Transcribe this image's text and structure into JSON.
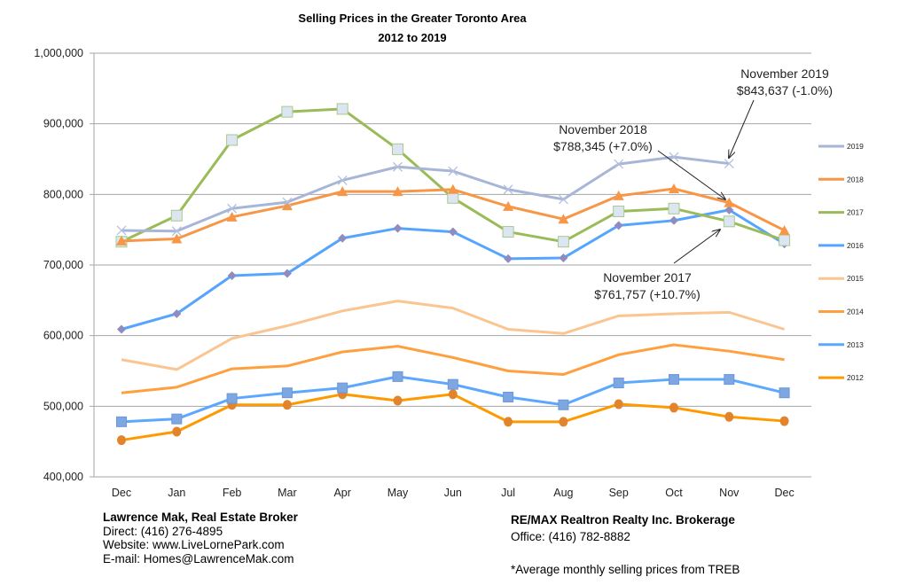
{
  "chart_data": {
    "type": "line",
    "title": "Selling Prices in the Greater Toronto Area",
    "subtitle": "2012 to 2019",
    "xlabel": "",
    "ylabel": "",
    "ylim": [
      400000,
      1000000
    ],
    "yticks": [
      400000,
      500000,
      600000,
      700000,
      800000,
      900000,
      1000000
    ],
    "ytick_labels": [
      "400,000",
      "500,000",
      "600,000",
      "700,000",
      "800,000",
      "900,000",
      "1,000,000"
    ],
    "grid": true,
    "legend_position": "right",
    "categories": [
      "Dec",
      "Jan",
      "Feb",
      "Mar",
      "Apr",
      "May",
      "Jun",
      "Jul",
      "Aug",
      "Sep",
      "Oct",
      "Nov",
      "Dec"
    ],
    "series": [
      {
        "name": "2019",
        "color": "#A7B6D6",
        "marker": "x",
        "values": [
          749000,
          748000,
          780000,
          789000,
          820000,
          839000,
          833000,
          807000,
          793000,
          843000,
          853000,
          843637,
          null
        ]
      },
      {
        "name": "2018",
        "color": "#F79646",
        "marker": "triangle",
        "values": [
          734000,
          737000,
          768000,
          784000,
          804000,
          804000,
          807000,
          783000,
          765000,
          798000,
          808000,
          788345,
          749000
        ]
      },
      {
        "name": "2017",
        "color": "#9BBB59",
        "marker": "square-light",
        "values": [
          733000,
          770000,
          877000,
          917000,
          921000,
          864000,
          795000,
          747000,
          733000,
          776000,
          780000,
          761757,
          735000
        ]
      },
      {
        "name": "2016",
        "color": "#55A5FF",
        "marker": "diamond",
        "values": [
          609000,
          631000,
          685000,
          688000,
          738000,
          752000,
          747000,
          709000,
          710000,
          756000,
          763000,
          778000,
          730000
        ]
      },
      {
        "name": "2015",
        "color": "#FAC591",
        "marker": "none",
        "values": [
          566000,
          552000,
          596000,
          614000,
          635000,
          649000,
          639000,
          609000,
          603000,
          628000,
          631000,
          633000,
          609000
        ]
      },
      {
        "name": "2014",
        "color": "#FFA040",
        "marker": "none",
        "values": [
          519000,
          527000,
          553000,
          557000,
          577000,
          585000,
          569000,
          550000,
          545000,
          573000,
          587000,
          578000,
          566000
        ]
      },
      {
        "name": "2013",
        "color": "#5CA8FF",
        "marker": "square",
        "values": [
          478000,
          482000,
          511000,
          519000,
          526000,
          542000,
          531000,
          513000,
          502000,
          533000,
          538000,
          538000,
          519000
        ]
      },
      {
        "name": "2012",
        "color": "#FF9900",
        "marker": "circle",
        "values": [
          452000,
          464000,
          502000,
          502000,
          517000,
          508000,
          517000,
          478000,
          478000,
          503000,
          498000,
          485000,
          479000
        ]
      }
    ],
    "annotations": [
      {
        "line1": "November 2019",
        "line2": "$843,637 (-1.0%)",
        "series": "2019",
        "category_index": 11
      },
      {
        "line1": "November 2018",
        "line2": "$788,345 (+7.0%)",
        "series": "2018",
        "category_index": 11
      },
      {
        "line1": "November 2017",
        "line2": "$761,757 (+10.7%)",
        "series": "2017",
        "category_index": 11
      }
    ]
  },
  "footer": {
    "left": {
      "name": "Lawrence Mak, Real Estate Broker",
      "direct": "Direct:  (416) 276-4895",
      "website": "Website:  www.LiveLornePark.com",
      "email": "E-mail:  Homes@LawrenceMak.com"
    },
    "right": {
      "company": "RE/MAX Realtron Realty Inc. Brokerage",
      "office": "Office: (416) 782-8882",
      "note": "*Average monthly selling prices from TREB"
    }
  }
}
